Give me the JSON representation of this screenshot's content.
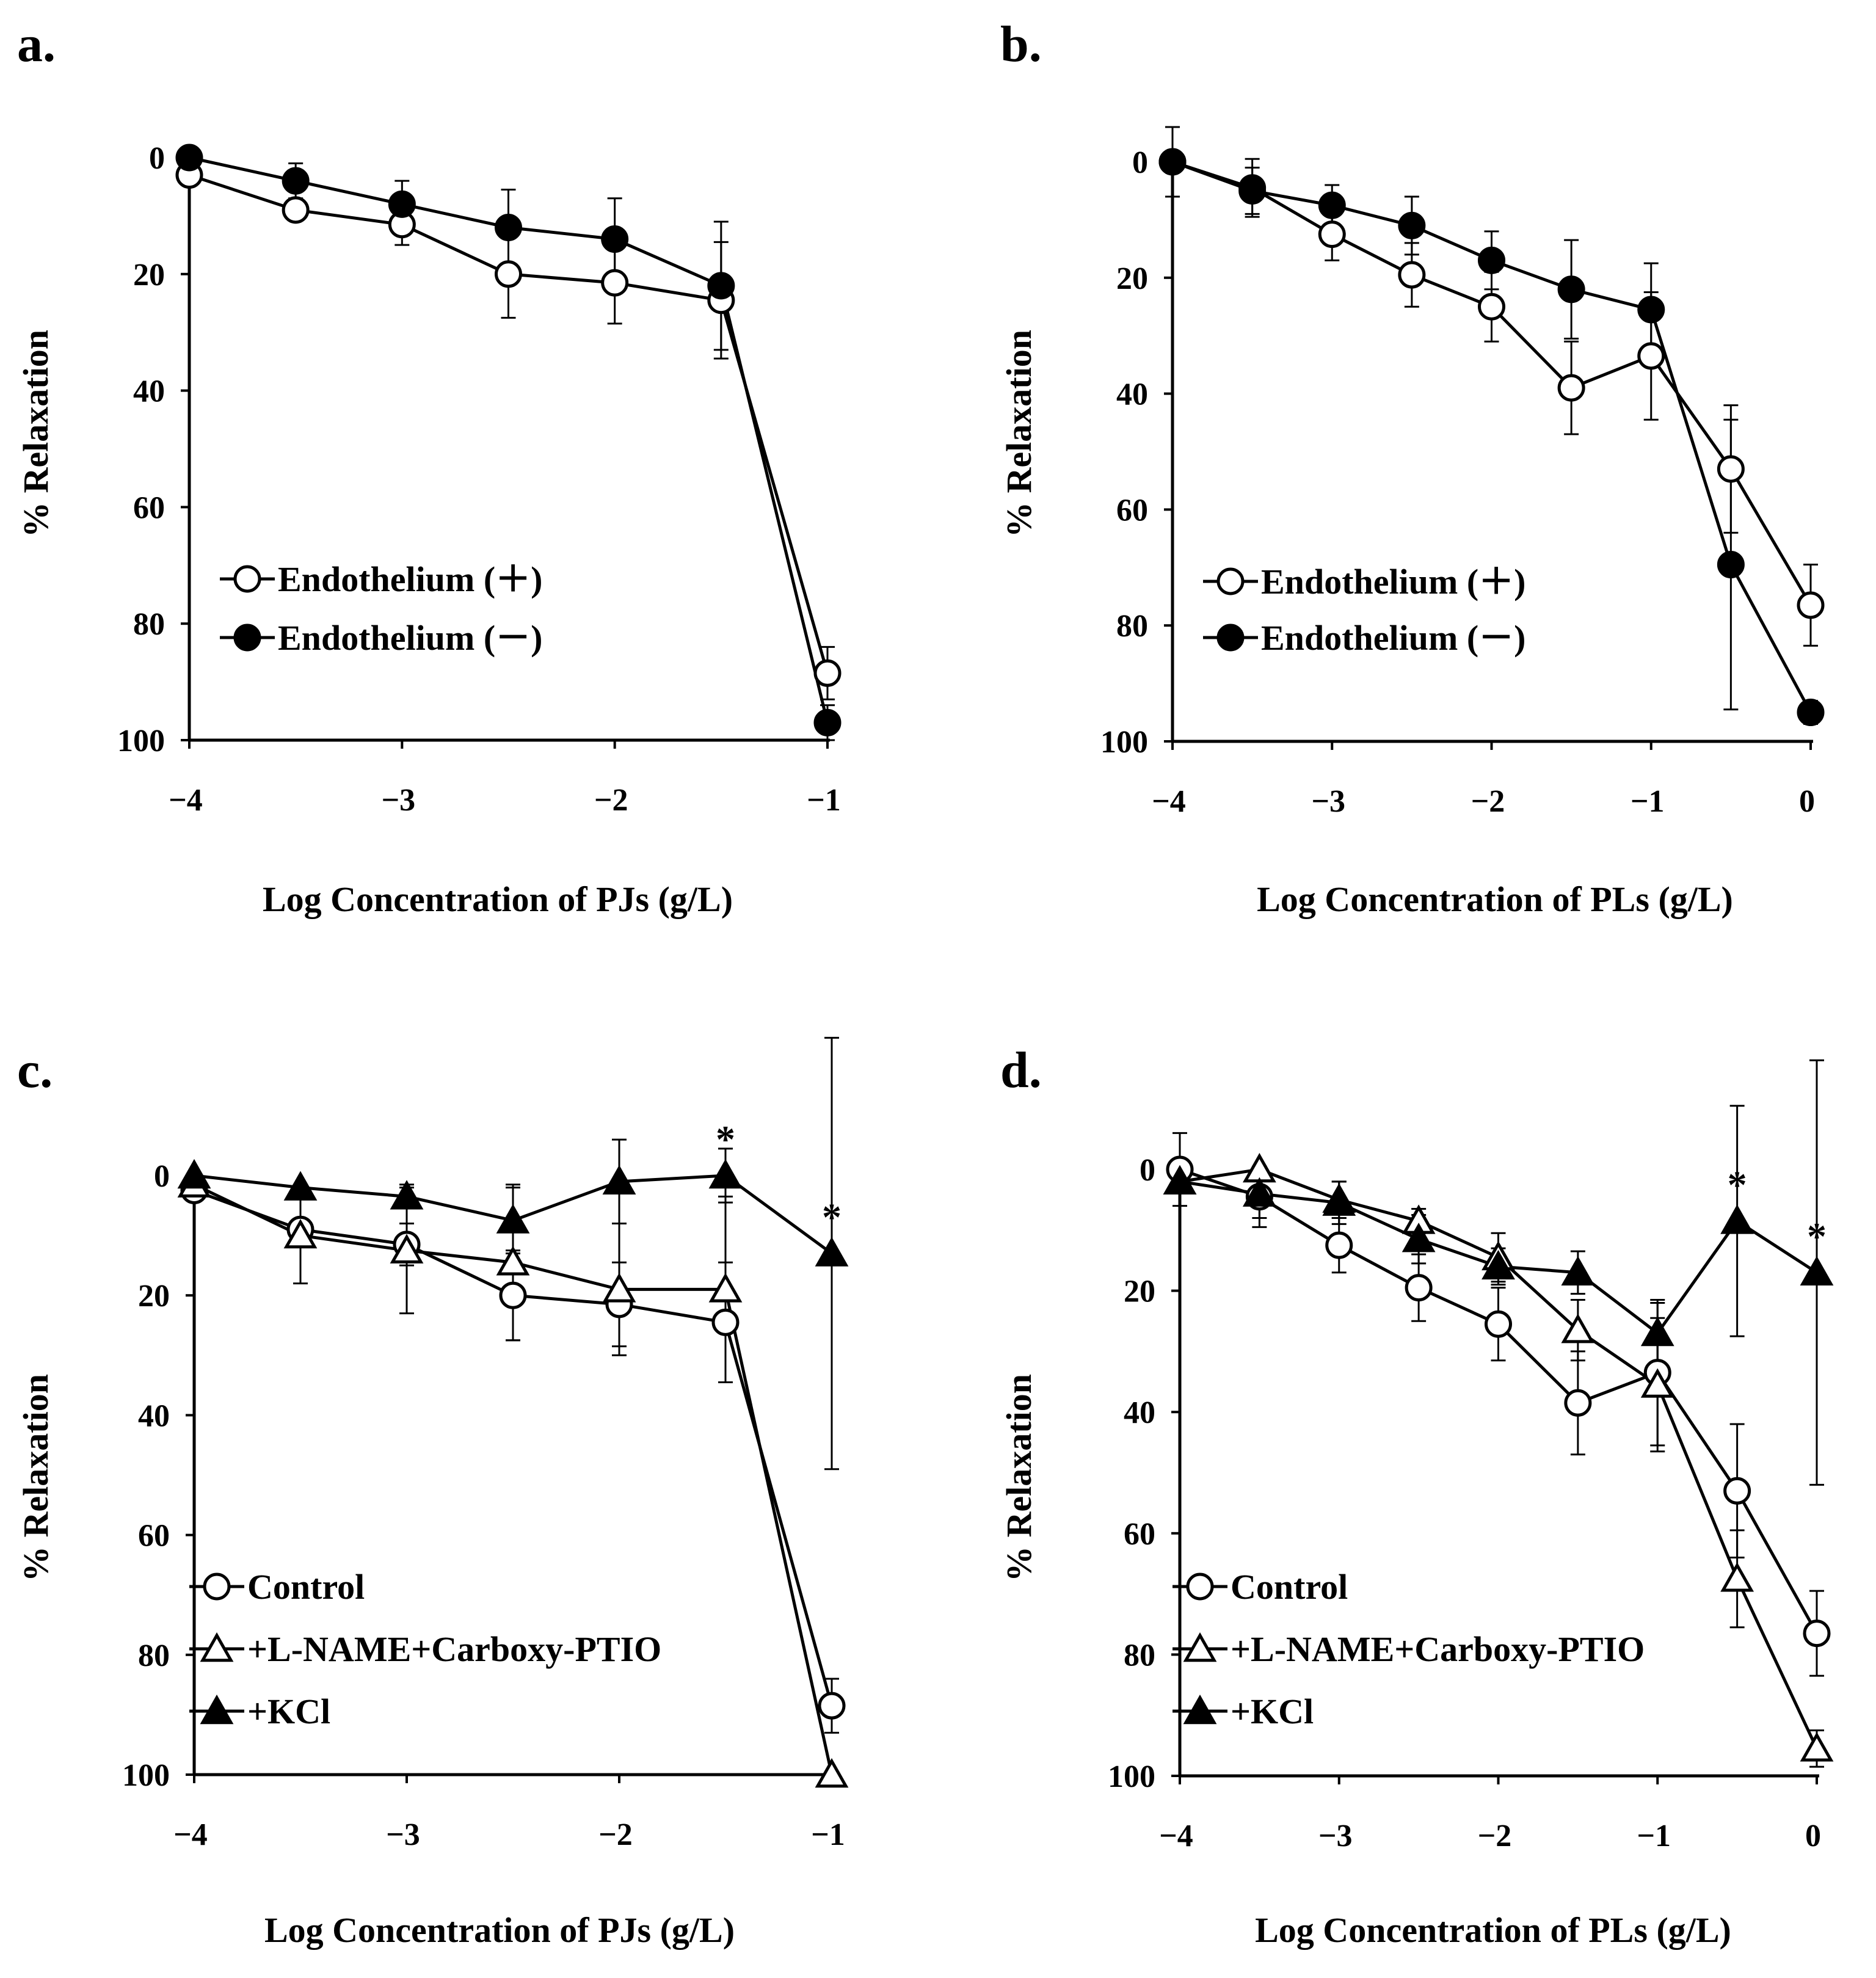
{
  "figure": {
    "panels": [
      {
        "label": "a.",
        "chart_data": {
          "type": "line",
          "xlabel": "Log Concentration of PJs (g/L)",
          "ylabel": "% Relaxation",
          "xlim": [
            -4,
            -1
          ],
          "ylim": [
            0,
            100
          ],
          "y_inverted": true,
          "x_ticks": [
            -4,
            -3,
            -2,
            -1
          ],
          "x_tick_labels": [
            "−4",
            "−3",
            "−2",
            "−1"
          ],
          "y_ticks": [
            0,
            20,
            40,
            60,
            80,
            100
          ],
          "y_tick_labels": [
            "0",
            "20",
            "40",
            "60",
            "80",
            "100"
          ],
          "grid": false,
          "legend_position": "lower-left",
          "series": [
            {
              "name": "Endothelium (＋)",
              "marker": "circle-open",
              "x": [
                -4,
                -3.5,
                -3,
                -2.5,
                -2,
                -1.5,
                -1
              ],
              "y": [
                3,
                9,
                11.5,
                20,
                21.5,
                24.5,
                88.5
              ],
              "err": [
                0,
                1,
                3.5,
                7.5,
                7,
                10,
                4.5
              ]
            },
            {
              "name": "Endothelium (－)",
              "marker": "circle-filled",
              "x": [
                -4,
                -3.5,
                -3,
                -2.5,
                -2,
                -1.5,
                -1
              ],
              "y": [
                0,
                4,
                8,
                12,
                14,
                22,
                97
              ],
              "err": [
                0,
                3,
                4,
                6.5,
                7,
                11,
                3
              ]
            }
          ],
          "annotations": []
        }
      },
      {
        "label": "b.",
        "chart_data": {
          "type": "line",
          "xlabel": "Log Concentration of PLs (g/L)",
          "ylabel": "% Relaxation",
          "xlim": [
            -4,
            0
          ],
          "ylim": [
            0,
            100
          ],
          "y_inverted": true,
          "x_ticks": [
            -4,
            -3,
            -2,
            -1,
            0
          ],
          "x_tick_labels": [
            "−4",
            "−3",
            "−2",
            "−1",
            "0"
          ],
          "y_ticks": [
            0,
            20,
            40,
            60,
            80,
            100
          ],
          "y_tick_labels": [
            "0",
            "20",
            "40",
            "60",
            "80",
            "100"
          ],
          "grid": false,
          "legend_position": "lower-left",
          "series": [
            {
              "name": "Endothelium (＋)",
              "marker": "circle-open",
              "x": [
                -4,
                -3.5,
                -3,
                -2.5,
                -2,
                -1.5,
                -1,
                -0.5,
                0
              ],
              "y": [
                0,
                4.5,
                12.5,
                19.5,
                25,
                39,
                33.5,
                53,
                76.5
              ],
              "err": [
                6,
                5,
                4.5,
                5.5,
                6,
                8,
                11,
                11,
                7
              ]
            },
            {
              "name": "Endothelium (－)",
              "marker": "circle-filled",
              "x": [
                -4,
                -3.5,
                -3,
                -2.5,
                -2,
                -1.5,
                -1,
                -0.5,
                0
              ],
              "y": [
                0,
                5,
                7.5,
                11,
                17,
                22,
                25.5,
                69.5,
                95
              ],
              "err": [
                0,
                4,
                3.5,
                5,
                5,
                8.5,
                8,
                25,
                2
              ]
            }
          ],
          "annotations": []
        }
      },
      {
        "label": "c.",
        "chart_data": {
          "type": "line",
          "xlabel": "Log Concentration of PJs (g/L)",
          "ylabel": "% Relaxation",
          "xlim": [
            -4,
            -1
          ],
          "ylim": [
            0,
            100
          ],
          "y_inverted": true,
          "x_ticks": [
            -4,
            -3,
            -2,
            -1
          ],
          "x_tick_labels": [
            "−4",
            "−3",
            "−2",
            "−1"
          ],
          "y_ticks": [
            0,
            20,
            40,
            60,
            80,
            100
          ],
          "y_tick_labels": [
            "0",
            "20",
            "40",
            "60",
            "80",
            "100"
          ],
          "grid": false,
          "legend_position": "lower-left",
          "series": [
            {
              "name": "Control",
              "marker": "circle-open",
              "x": [
                -4,
                -3.5,
                -3,
                -2.5,
                -2,
                -1.5,
                -1
              ],
              "y": [
                2.5,
                9,
                11.5,
                20,
                21.5,
                24.5,
                88.5
              ],
              "err": [
                0,
                1,
                3.5,
                7.5,
                7,
                10,
                4.5
              ]
            },
            {
              "name": "+L-NAME+Carboxy-PTIO",
              "marker": "triangle-open",
              "x": [
                -4,
                -3.5,
                -3,
                -2.5,
                -2,
                -1.5,
                -1
              ],
              "y": [
                1.5,
                10,
                12.5,
                14.5,
                19,
                19,
                100
              ],
              "err": [
                0,
                8,
                10.5,
                13,
                11,
                15.5,
                0
              ]
            },
            {
              "name": "+KCl",
              "marker": "triangle-filled",
              "x": [
                -4,
                -3.5,
                -3,
                -2.5,
                -2,
                -1.5,
                -1
              ],
              "y": [
                0,
                2,
                3.5,
                7.5,
                1,
                0,
                13
              ],
              "err": [
                0,
                0,
                2,
                5.5,
                7,
                4.5,
                36
              ]
            }
          ],
          "annotations": [
            {
              "x": -1.5,
              "y": 0,
              "text": "*"
            },
            {
              "x": -1,
              "y": 13,
              "text": "*"
            }
          ]
        }
      },
      {
        "label": "d.",
        "chart_data": {
          "type": "line",
          "xlabel": "Log Concentration of PLs (g/L)",
          "ylabel": "% Relaxation",
          "xlim": [
            -4,
            0
          ],
          "ylim": [
            0,
            100
          ],
          "y_inverted": true,
          "x_ticks": [
            -4,
            -3,
            -2,
            -1,
            0
          ],
          "x_tick_labels": [
            "−4",
            "−3",
            "−2",
            "−1",
            "0"
          ],
          "y_ticks": [
            0,
            20,
            40,
            60,
            80,
            100
          ],
          "y_tick_labels": [
            "0",
            "20",
            "40",
            "60",
            "80",
            "100"
          ],
          "grid": false,
          "legend_position": "lower-left",
          "series": [
            {
              "name": "Control",
              "marker": "circle-open",
              "x": [
                -4,
                -3.5,
                -3,
                -2.5,
                -2,
                -1.5,
                -1,
                -0.5,
                0
              ],
              "y": [
                0,
                4.5,
                12.5,
                19.5,
                25.5,
                38.5,
                33.5,
                53,
                76.5
              ],
              "err": [
                6,
                5,
                4.5,
                5.5,
                6,
                8.5,
                12,
                11,
                7
              ]
            },
            {
              "name": "+L-NAME+Carboxy-PTIO",
              "marker": "triangle-open",
              "x": [
                -4,
                -3.5,
                -3,
                -2.5,
                -2,
                -1.5,
                -1,
                -0.5,
                0
              ],
              "y": [
                2,
                0,
                5,
                8.5,
                14.5,
                26.5,
                35.5,
                67.5,
                95.5
              ],
              "err": [
                0,
                0,
                3,
                2,
                4,
                5,
                11,
                8,
                3
              ]
            },
            {
              "name": "+KCl",
              "marker": "triangle-filled",
              "x": [
                -4,
                -3.5,
                -3,
                -2.5,
                -2,
                -1.5,
                -1,
                -0.5,
                0
              ],
              "y": [
                2,
                4,
                5.5,
                11.5,
                16,
                17,
                27,
                8.5,
                17
              ],
              "err": [
                0,
                4,
                3.5,
                4,
                3,
                3.5,
                5,
                19,
                35
              ]
            }
          ],
          "annotations": [
            {
              "x": -0.5,
              "y": 8.5,
              "text": "*"
            },
            {
              "x": 0,
              "y": 17,
              "text": "*"
            }
          ]
        }
      }
    ]
  }
}
